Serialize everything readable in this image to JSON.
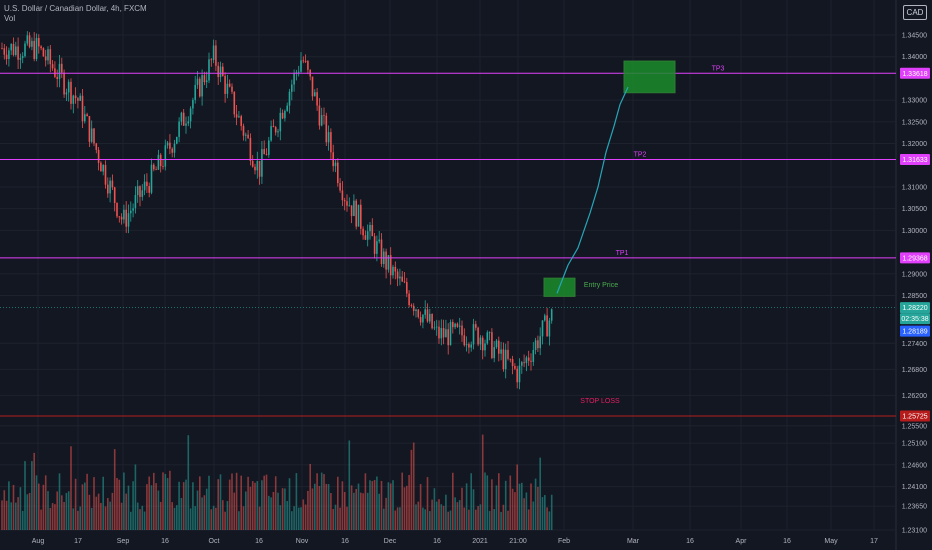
{
  "header": {
    "symbol": "U.S. Dollar / Canadian Dollar, 4h, FXCM",
    "volume_label": "Vol"
  },
  "currency_button": "CAD",
  "colors": {
    "background": "#131722",
    "grid": "#1e222d",
    "up": "#26a69a",
    "down": "#ef5350",
    "target_line": "#e040fb",
    "stop_line": "#b71c1c",
    "zone_fill": "#1b8c2b",
    "projection": "#26a6b8"
  },
  "chart_data": {
    "type": "candlestick",
    "title": "U.S. Dollar / Canadian Dollar, 4h, FXCM",
    "x_ticks": [
      "Aug",
      "17",
      "Sep",
      "16",
      "Oct",
      "16",
      "Nov",
      "16",
      "Dec",
      "16",
      "2021",
      "21:00",
      "Feb",
      "Mar",
      "16",
      "Apr",
      "16",
      "May",
      "17"
    ],
    "y_ticks": [
      1.345,
      1.34,
      1.33,
      1.325,
      1.32,
      1.31,
      1.305,
      1.3,
      1.29,
      1.285,
      1.274,
      1.268,
      1.262,
      1.255,
      1.251,
      1.246,
      1.241,
      1.2365,
      1.231
    ],
    "y_tick_labels": [
      "1.34500",
      "1.34000",
      "1.33000",
      "1.32500",
      "1.32000",
      "1.31000",
      "1.30500",
      "1.30000",
      "1.29000",
      "1.28500",
      "1.27400",
      "1.26800",
      "1.26200",
      "1.25500",
      "1.25100",
      "1.24600",
      "1.24100",
      "1.23650",
      "1.23100"
    ],
    "ylim": [
      1.231,
      1.35
    ],
    "grid": true,
    "price_path": [
      [
        "Aug",
        1.342
      ],
      [
        "17",
        1.33
      ],
      [
        "Sep",
        1.302
      ],
      [
        "16",
        1.317
      ],
      [
        "Oct",
        1.34
      ],
      [
        "16",
        1.314
      ],
      [
        "Nov",
        1.34
      ],
      [
        "16",
        1.308
      ],
      [
        "Dec",
        1.291
      ],
      [
        "16",
        1.276
      ],
      [
        "2021",
        1.276
      ],
      [
        "21:00",
        1.267
      ],
      [
        "Feb",
        1.282
      ]
    ],
    "levels": [
      {
        "name": "TP3",
        "price": 1.33618,
        "label": "1.33618"
      },
      {
        "name": "TP2",
        "price": 1.31633,
        "label": "1.31633"
      },
      {
        "name": "TP1",
        "price": 1.29368,
        "label": "1.29368"
      },
      {
        "name": "STOP LOSS",
        "price": 1.25725,
        "label": "1.25725"
      }
    ],
    "current_price": {
      "label": "1.28220",
      "countdown": "02:35:38"
    },
    "bid_price": {
      "label": "1.28189"
    },
    "entry_zone": {
      "label": "Entry Price",
      "price_low": 1.2848,
      "price_high": 1.289
    },
    "target_zone": {
      "price_low": 1.3317,
      "price_high": 1.339
    },
    "projection": [
      1.284,
      1.294,
      1.31,
      1.327,
      1.3335
    ]
  }
}
